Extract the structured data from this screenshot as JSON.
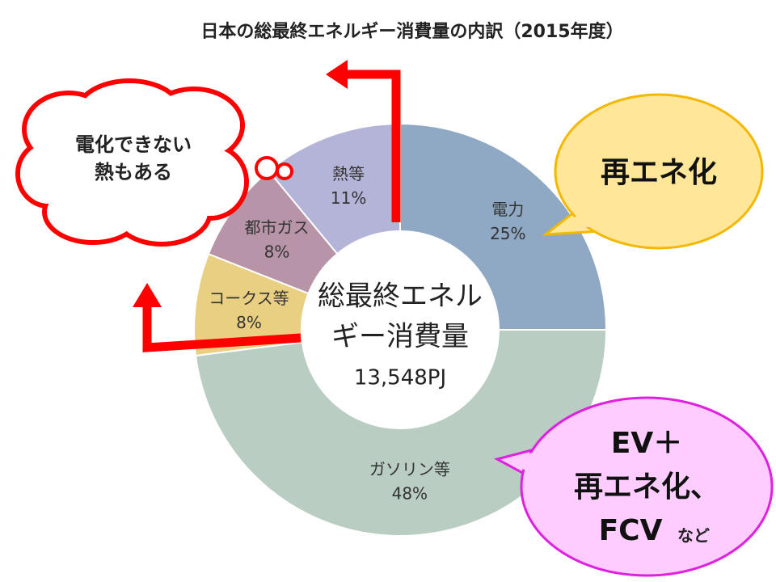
{
  "chart_data": {
    "type": "donut",
    "title": "日本の総最終エネルギー消費量の内訳（2015年度）",
    "categories": [
      "電力",
      "ガソリン等",
      "コークス等",
      "都市ガス",
      "熱等"
    ],
    "values": [
      25,
      48,
      8,
      8,
      11
    ],
    "value_labels": [
      "25%",
      "48%",
      "8%",
      "8%",
      "11%"
    ],
    "colors": [
      "#8fa8c4",
      "#b9cdc3",
      "#e8cf82",
      "#b894a8",
      "#b4b4d8"
    ],
    "center_label": [
      "総最終エネル",
      "ギー消費量"
    ],
    "center_value": "13,548PJ",
    "annotations": [
      {
        "lines": [
          "電化できない",
          "熱もある"
        ]
      },
      {
        "lines": [
          "再エネ化"
        ]
      },
      {
        "lines": [
          "EV＋",
          "再エネ化、",
          "FCV"
        ],
        "suffix": "など"
      }
    ]
  }
}
